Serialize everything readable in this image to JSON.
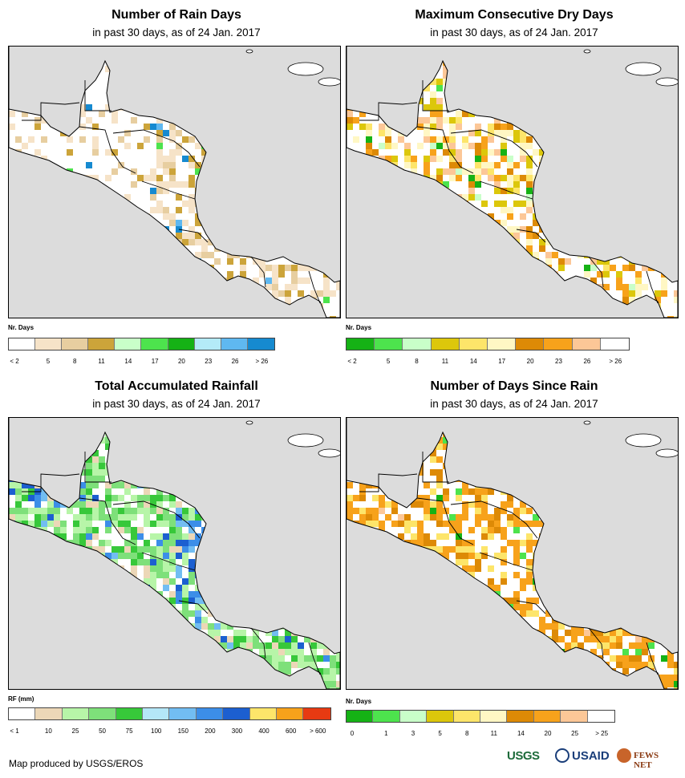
{
  "colors": {
    "ocean": "#dcdcdc",
    "land": "#ffffff",
    "border": "#000000"
  },
  "panels": [
    {
      "id": "rain-days",
      "title": "Number of Rain Days",
      "subtitle": "in past 30 days, as of 24 Jan. 2017",
      "legend_title": "Nr. Days",
      "legend_colors": [
        "#ffffff",
        "#f6e3c8",
        "#e7cea0",
        "#cca43a",
        "#c9ffc9",
        "#4de34d",
        "#15b215",
        "#b4ebf8",
        "#5fb8f0",
        "#168ad0"
      ],
      "legend_labels": [
        "< 2",
        "5",
        "8",
        "11",
        "14",
        "17",
        "20",
        "23",
        "26",
        "> 26"
      ],
      "pixel_palette": [
        "#f6e3c8",
        "#e7cea0",
        "#f6e3c8",
        "#e7cea0",
        "#cca43a",
        "#f6e3c8"
      ],
      "accent_palette": [
        "#4de34d",
        "#5fb8f0",
        "#168ad0"
      ],
      "pattern": "sparse-east"
    },
    {
      "id": "dry-days",
      "title": "Maximum Consecutive Dry Days",
      "subtitle": "in past 30 days, as of 24 Jan. 2017",
      "legend_title": "Nr. Days",
      "legend_colors": [
        "#15b215",
        "#4de34d",
        "#c9ffc9",
        "#dcc70b",
        "#fde56a",
        "#fff7c4",
        "#dd8a06",
        "#f7a21b",
        "#fcc797",
        "#ffffff"
      ],
      "legend_labels": [
        "< 2",
        "5",
        "8",
        "11",
        "14",
        "17",
        "20",
        "23",
        "26",
        "> 26"
      ],
      "pixel_palette": [
        "#fff7c4",
        "#fde56a",
        "#fff7c4",
        "#dcc70b",
        "#f7a21b",
        "#dd8a06",
        "#fcc797"
      ],
      "accent_palette": [
        "#4de34d",
        "#15b215",
        "#c9ffc9"
      ],
      "pattern": "dense"
    },
    {
      "id": "rainfall",
      "title": "Total Accumulated Rainfall",
      "subtitle": "in past 30 days, as of 24 Jan. 2017",
      "legend_title": "RF (mm)",
      "legend_colors": [
        "#ffffff",
        "#ecd7b7",
        "#b7f5a8",
        "#7ee07a",
        "#37c83a",
        "#b4e7f8",
        "#72bdf2",
        "#3c8ee8",
        "#1c5fd0",
        "#fde56a",
        "#f7a21b",
        "#e73a12"
      ],
      "legend_labels": [
        "< 1",
        "10",
        "25",
        "50",
        "75",
        "100",
        "150",
        "200",
        "300",
        "400",
        "600",
        "> 600"
      ],
      "pixel_palette": [
        "#b7f5a8",
        "#7ee07a",
        "#37c83a",
        "#b7f5a8",
        "#ecd7b7",
        "#7ee07a"
      ],
      "accent_palette": [
        "#72bdf2",
        "#3c8ee8",
        "#1c5fd0"
      ],
      "pattern": "green"
    },
    {
      "id": "since-rain",
      "title": "Number of Days Since Rain",
      "subtitle": "in past 30 days, as of 24 Jan. 2017",
      "legend_title": "Nr. Days",
      "legend_colors": [
        "#15b215",
        "#4de34d",
        "#c9ffc9",
        "#dcc70b",
        "#fde56a",
        "#fff7c4",
        "#dd8a06",
        "#f7a21b",
        "#fcc797",
        "#ffffff"
      ],
      "legend_labels": [
        "0",
        "1",
        "3",
        "5",
        "8",
        "11",
        "14",
        "20",
        "25",
        "> 25"
      ],
      "pixel_palette": [
        "#f7a21b",
        "#f7a21b",
        "#dd8a06",
        "#f7a21b",
        "#fde56a",
        "#ffffff"
      ],
      "accent_palette": [
        "#15b215",
        "#4de34d",
        "#fcc797"
      ],
      "pattern": "orange"
    }
  ],
  "footer": {
    "credit": "Map produced by USGS/EROS",
    "logos": [
      "USGS",
      "USAID",
      "FEWS NET"
    ]
  }
}
